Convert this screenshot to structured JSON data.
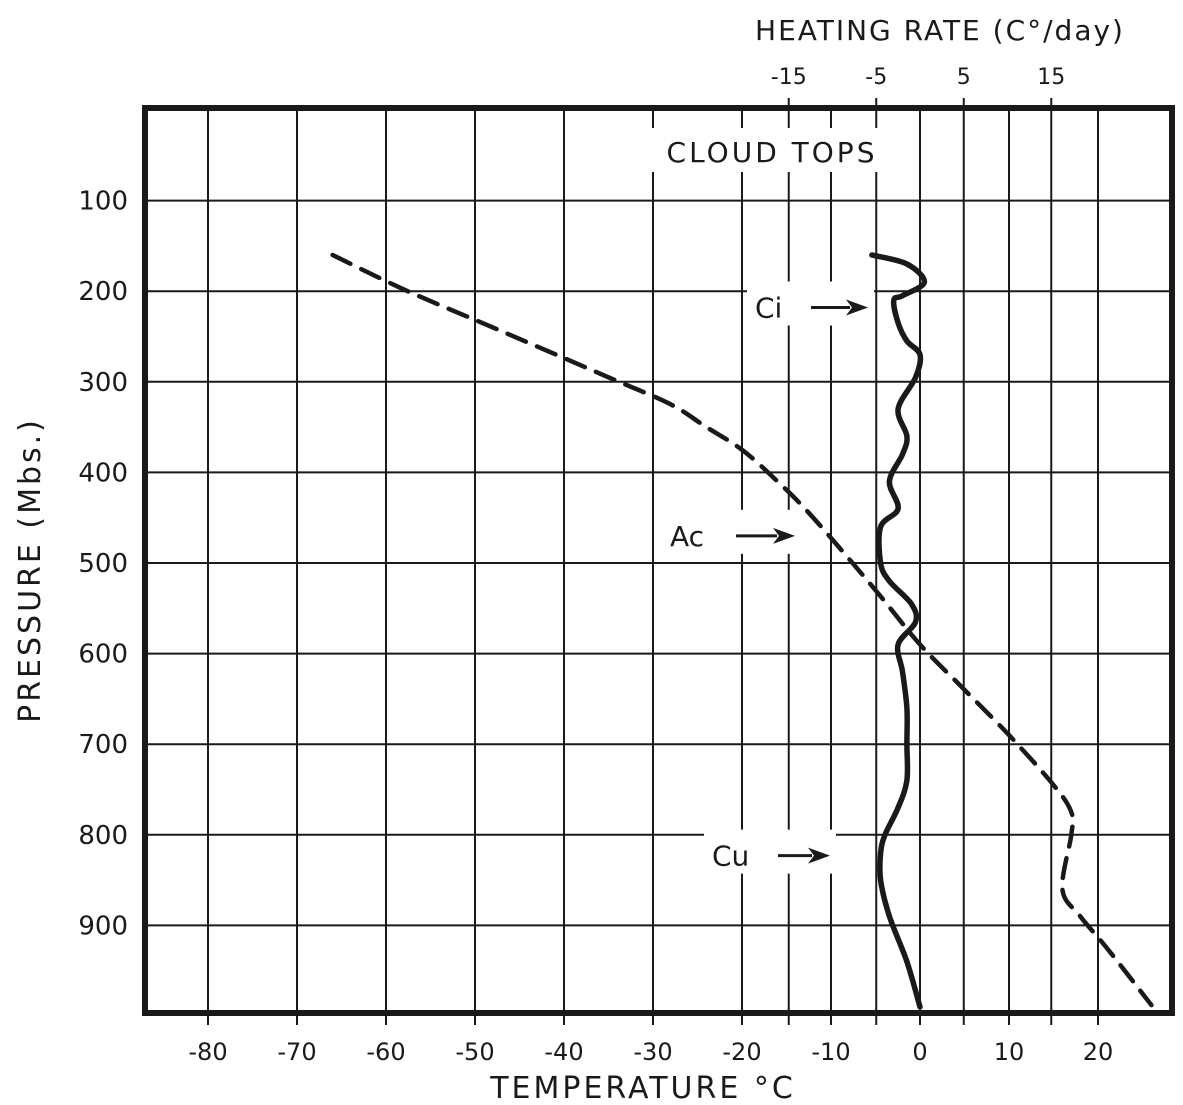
{
  "chart_data": {
    "type": "line",
    "top_axis_title": "HEATING RATE (C°/day)",
    "bottom_axis_title": "TEMPERATURE °C",
    "left_axis_title": "PRESSURE (Mbs.)",
    "annotation_title": "CLOUD TOPS",
    "x_temperature": {
      "range": [
        -90,
        28
      ],
      "ticks": [
        -80,
        -70,
        -60,
        -50,
        -40,
        -30,
        -20,
        -10,
        0,
        10,
        20
      ],
      "tick_labels": [
        "-80",
        "-70",
        "-60",
        "-50",
        "-40",
        "-30",
        "-20",
        "-10",
        "0",
        "10",
        "20"
      ]
    },
    "x_heating_rate": {
      "ticks": [
        -15,
        -5,
        5,
        15
      ],
      "tick_labels": [
        "-15",
        "-5",
        "5",
        "15"
      ]
    },
    "y_pressure": {
      "range": [
        0,
        1000
      ],
      "inverted": true,
      "ticks": [
        100,
        200,
        300,
        400,
        500,
        600,
        700,
        800,
        900
      ],
      "tick_labels": [
        "100",
        "200",
        "300",
        "400",
        "500",
        "600",
        "700",
        "800",
        "900"
      ]
    },
    "grid": true,
    "series": [
      {
        "axis": "temperature",
        "style": "dashed",
        "points": [
          [
            -66,
            160
          ],
          [
            -58,
            198
          ],
          [
            -48,
            240
          ],
          [
            -35,
            295
          ],
          [
            -28,
            325
          ],
          [
            -24,
            350
          ],
          [
            -20,
            375
          ],
          [
            -16,
            410
          ],
          [
            -12,
            450
          ],
          [
            -5,
            530
          ],
          [
            0,
            590
          ],
          [
            5,
            640
          ],
          [
            10,
            690
          ],
          [
            15,
            745
          ],
          [
            17,
            775
          ],
          [
            17,
            800
          ],
          [
            16,
            860
          ],
          [
            18,
            890
          ],
          [
            21,
            925
          ],
          [
            26,
            988
          ]
        ]
      },
      {
        "axis": "heating_rate",
        "style": "solid",
        "points": [
          [
            -5.5,
            160
          ],
          [
            -1.5,
            170
          ],
          [
            0.5,
            190
          ],
          [
            -2,
            205
          ],
          [
            -3,
            210
          ],
          [
            -2.5,
            235
          ],
          [
            -1.5,
            255
          ],
          [
            0,
            270
          ],
          [
            -0.5,
            295
          ],
          [
            -2.5,
            330
          ],
          [
            -1.5,
            360
          ],
          [
            -2,
            380
          ],
          [
            -3.5,
            410
          ],
          [
            -2.5,
            440
          ],
          [
            -4.5,
            460
          ],
          [
            -4.5,
            500
          ],
          [
            -3.5,
            520
          ],
          [
            -1,
            545
          ],
          [
            -0.5,
            565
          ],
          [
            -2.5,
            590
          ],
          [
            -2,
            620
          ],
          [
            -1.5,
            660
          ],
          [
            -1.5,
            700
          ],
          [
            -1.5,
            740
          ],
          [
            -2.5,
            770
          ],
          [
            -4,
            800
          ],
          [
            -4.5,
            820
          ],
          [
            -4.5,
            850
          ],
          [
            -3.5,
            890
          ],
          [
            -1.5,
            940
          ],
          [
            0,
            990
          ]
        ]
      }
    ],
    "annotations": [
      {
        "label": "Ci",
        "pressure": 218
      },
      {
        "label": "Ac",
        "pressure": 470
      },
      {
        "label": "Cu",
        "pressure": 823
      }
    ]
  }
}
